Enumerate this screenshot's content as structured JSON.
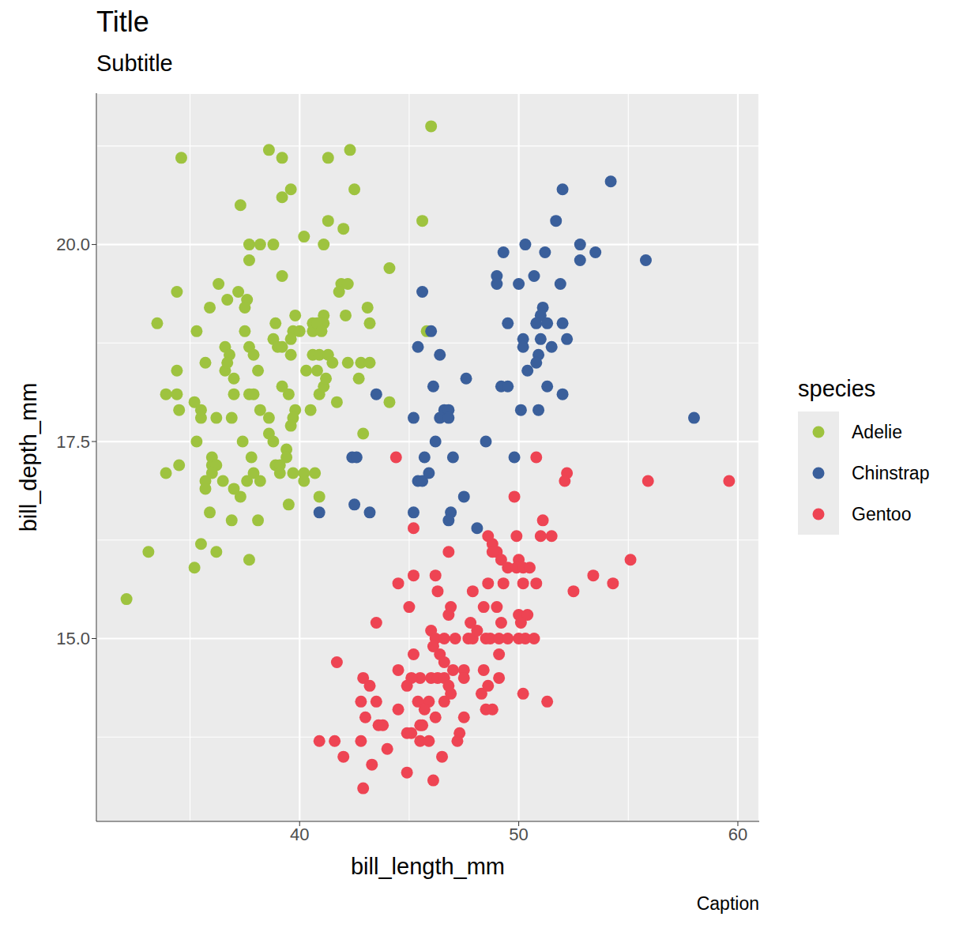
{
  "chart_data": {
    "type": "scatter",
    "title": "Title",
    "subtitle": "Subtitle",
    "caption": "Caption",
    "x_label": "bill_length_mm",
    "y_label": "bill_depth_mm",
    "legend_title": "species",
    "legend": "right",
    "grid": true,
    "marker": "circle",
    "xlim": [
      30.725,
      60.975
    ],
    "xticks": [
      40,
      50,
      60
    ],
    "ylim": [
      12.68,
      21.92
    ],
    "yticks": [
      {
        "value": 15,
        "label": "15.0"
      },
      {
        "value": 17.5,
        "label": "17.5"
      },
      {
        "value": 20,
        "label": "20.0"
      }
    ],
    "series": [
      {
        "name": "Adelie",
        "color": "#9ec33f",
        "x": [
          46.0,
          34.6,
          38.6,
          39.2,
          41.3,
          42.3,
          39.6,
          39.2,
          42.5,
          37.3,
          41.3,
          45.6,
          42.0,
          40.2,
          37.7,
          38.2,
          38.8,
          41.1,
          37.7,
          39.2,
          44.1,
          34.4,
          36.3,
          37.2,
          41.9,
          42.2,
          41.8,
          35.9,
          36.7,
          37.6,
          33.5,
          35.3,
          37.5,
          39.8,
          41.1,
          41.1,
          42.1,
          43.1,
          43.2,
          38.9,
          37.5,
          36.6,
          36.8,
          37.7,
          38.8,
          39.0,
          39.2,
          39.7,
          40.0,
          40.6,
          40.6,
          40.8,
          41.0,
          35.7,
          34.4,
          36.6,
          36.7,
          37.9,
          38.1,
          39.6,
          39.6,
          40.6,
          40.9,
          41.3,
          40.3,
          40.8,
          41.5,
          42.2,
          42.8,
          43.2,
          42.7,
          33.9,
          34.4,
          37.0,
          37.7,
          37.9,
          37.0,
          39.2,
          39.5,
          40.9,
          41.1,
          41.2,
          34.5,
          35.2,
          35.5,
          35.5,
          36.2,
          36.9,
          38.2,
          38.6,
          39.8,
          39.7,
          39.6,
          40.5,
          41.7,
          44.1,
          35.3,
          37.4,
          38.6,
          38.8,
          42.9,
          36.0,
          37.8,
          39.4,
          39.4,
          33.9,
          34.5,
          36.0,
          36.2,
          38.9,
          39.1,
          40.2,
          40.7,
          35.7,
          36.0,
          36.5,
          37.6,
          37.9,
          38.2,
          39.1,
          39.7,
          40.2,
          35.7,
          37.0,
          37.3,
          40.9,
          39.5,
          35.9,
          36.9,
          38.1,
          35.5,
          36.2,
          33.1,
          35.2,
          37.7,
          32.1,
          45.8
        ],
        "y": [
          21.5,
          21.1,
          21.2,
          21.1,
          21.1,
          21.2,
          20.7,
          20.6,
          20.7,
          20.5,
          20.3,
          20.3,
          20.2,
          20.1,
          20.0,
          20.0,
          20.0,
          20.0,
          19.8,
          19.6,
          19.7,
          19.4,
          19.5,
          19.4,
          19.5,
          19.5,
          19.4,
          19.2,
          19.3,
          19.3,
          19.0,
          18.9,
          19.2,
          19.1,
          19.1,
          19.0,
          19.1,
          19.2,
          19.0,
          19.0,
          18.9,
          18.7,
          18.6,
          18.7,
          18.8,
          18.7,
          18.7,
          18.9,
          18.9,
          18.9,
          19.0,
          19.0,
          18.9,
          18.5,
          18.4,
          18.4,
          18.5,
          18.6,
          18.4,
          18.8,
          18.6,
          18.6,
          18.6,
          18.6,
          18.4,
          18.4,
          18.5,
          18.5,
          18.5,
          18.5,
          18.3,
          18.1,
          18.1,
          18.1,
          18.1,
          18.1,
          18.3,
          18.2,
          18.1,
          18.1,
          18.2,
          18.3,
          17.9,
          18.0,
          17.9,
          17.8,
          17.8,
          17.8,
          17.9,
          17.8,
          17.9,
          17.8,
          17.7,
          17.9,
          18.0,
          18.0,
          17.5,
          17.5,
          17.6,
          17.5,
          17.6,
          17.3,
          17.3,
          17.4,
          17.3,
          17.1,
          17.2,
          17.2,
          17.2,
          17.2,
          17.2,
          17.1,
          17.1,
          17.0,
          17.1,
          17.0,
          17.0,
          17.1,
          17.0,
          17.1,
          17.1,
          17.0,
          16.9,
          16.9,
          16.8,
          16.8,
          16.7,
          16.6,
          16.5,
          16.5,
          16.2,
          16.1,
          16.1,
          15.9,
          16.0,
          15.5,
          18.9
        ]
      },
      {
        "name": "Chinstrap",
        "color": "#3a5f9b",
        "x": [
          54.2,
          52.0,
          51.7,
          50.3,
          49.3,
          51.2,
          52.8,
          52.8,
          53.5,
          55.8,
          49.0,
          49.0,
          50.0,
          50.7,
          51.9,
          45.6,
          51.1,
          51.0,
          49.5,
          50.8,
          51.3,
          52.0,
          46.0,
          50.2,
          51.0,
          52.2,
          50.2,
          51.5,
          45.4,
          46.4,
          50.9,
          50.4,
          50.8,
          47.6,
          46.1,
          49.2,
          49.5,
          51.3,
          52.0,
          43.5,
          50.1,
          50.9,
          58.0,
          45.2,
          46.4,
          46.6,
          46.8,
          46.8,
          46.2,
          48.5,
          42.4,
          42.6,
          45.7,
          47.0,
          49.8,
          45.4,
          45.6,
          45.9,
          42.5,
          43.2,
          45.2,
          46.9,
          46.8,
          47.5,
          48.1,
          40.9
        ],
        "y": [
          20.8,
          20.7,
          20.3,
          20.0,
          19.9,
          19.9,
          20.0,
          19.8,
          19.9,
          19.8,
          19.6,
          19.5,
          19.5,
          19.6,
          19.5,
          19.4,
          19.2,
          19.1,
          19.0,
          19.0,
          19.0,
          19.0,
          18.9,
          18.8,
          18.8,
          18.8,
          18.7,
          18.7,
          18.7,
          18.6,
          18.6,
          18.4,
          18.5,
          18.3,
          18.2,
          18.2,
          18.2,
          18.2,
          18.1,
          18.1,
          17.9,
          17.9,
          17.8,
          17.8,
          17.8,
          17.9,
          17.9,
          17.8,
          17.5,
          17.5,
          17.3,
          17.3,
          17.3,
          17.3,
          17.3,
          17.0,
          17.0,
          17.1,
          16.7,
          16.6,
          16.6,
          16.6,
          16.5,
          16.8,
          16.4,
          16.6
        ]
      },
      {
        "name": "Gentoo",
        "color": "#ee4453",
        "x": [
          44.4,
          50.8,
          52.2,
          52.1,
          55.9,
          59.6,
          49.8,
          51.1,
          45.2,
          51.0,
          51.5,
          48.6,
          48.8,
          49.0,
          48.8,
          46.8,
          49.9,
          49.2,
          50.0,
          49.5,
          49.9,
          50.2,
          50.5,
          55.1,
          53.4,
          45.2,
          46.2,
          48.6,
          49.3,
          50.2,
          50.8,
          44.5,
          54.3,
          47.9,
          52.5,
          46.3,
          46.9,
          46.8,
          45.0,
          48.4,
          49.0,
          50.0,
          50.4,
          43.5,
          46.0,
          46.2,
          46.6,
          47.1,
          47.7,
          47.9,
          48.1,
          48.5,
          48.7,
          49.1,
          49.5,
          50.0,
          50.3,
          50.7,
          47.8,
          49.2,
          50.1,
          45.2,
          49.1,
          41.7,
          46.1,
          46.4,
          46.6,
          44.5,
          47.0,
          45.5,
          45.1,
          46.0,
          46.3,
          46.6,
          47.5,
          48.4,
          42.9,
          43.2,
          44.9,
          46.8,
          47.5,
          49.1,
          48.3,
          48.6,
          43.5,
          42.8,
          45.4,
          45.9,
          46.6,
          46.9,
          50.2,
          51.3,
          48.5,
          48.8,
          44.5,
          45.7,
          47.5,
          43.0,
          43.6,
          43.8,
          45.6,
          45.5,
          46.2,
          47.3,
          44.9,
          45.1,
          40.9,
          41.6,
          42.8,
          45.5,
          45.9,
          47.2,
          44.0,
          42.0,
          43.3,
          46.5,
          44.9,
          46.1,
          42.9
        ],
        "y": [
          17.3,
          17.3,
          17.1,
          17.0,
          17.0,
          17.0,
          16.8,
          16.5,
          16.4,
          16.3,
          16.3,
          16.3,
          16.2,
          16.1,
          16.1,
          16.1,
          16.3,
          16.0,
          16.0,
          15.9,
          15.9,
          15.9,
          15.9,
          16.0,
          15.8,
          15.8,
          15.8,
          15.7,
          15.7,
          15.7,
          15.7,
          15.7,
          15.7,
          15.6,
          15.6,
          15.6,
          15.4,
          15.3,
          15.4,
          15.4,
          15.4,
          15.3,
          15.3,
          15.2,
          15.1,
          15.0,
          15.0,
          15.0,
          15.0,
          15.0,
          15.1,
          15.0,
          15.0,
          15.0,
          15.0,
          15.0,
          15.0,
          15.0,
          15.2,
          15.2,
          15.2,
          14.8,
          14.8,
          14.7,
          14.9,
          14.8,
          14.7,
          14.6,
          14.6,
          14.5,
          14.5,
          14.5,
          14.5,
          14.5,
          14.6,
          14.6,
          14.5,
          14.4,
          14.4,
          14.4,
          14.5,
          14.5,
          14.3,
          14.4,
          14.2,
          14.2,
          14.2,
          14.2,
          14.2,
          14.3,
          14.3,
          14.2,
          14.1,
          14.1,
          14.1,
          14.1,
          14.0,
          14.0,
          13.9,
          13.9,
          13.9,
          13.9,
          14.0,
          13.8,
          13.8,
          13.8,
          13.7,
          13.7,
          13.7,
          13.7,
          13.7,
          13.7,
          13.6,
          13.5,
          13.4,
          13.5,
          13.3,
          13.2,
          13.1
        ]
      }
    ]
  }
}
